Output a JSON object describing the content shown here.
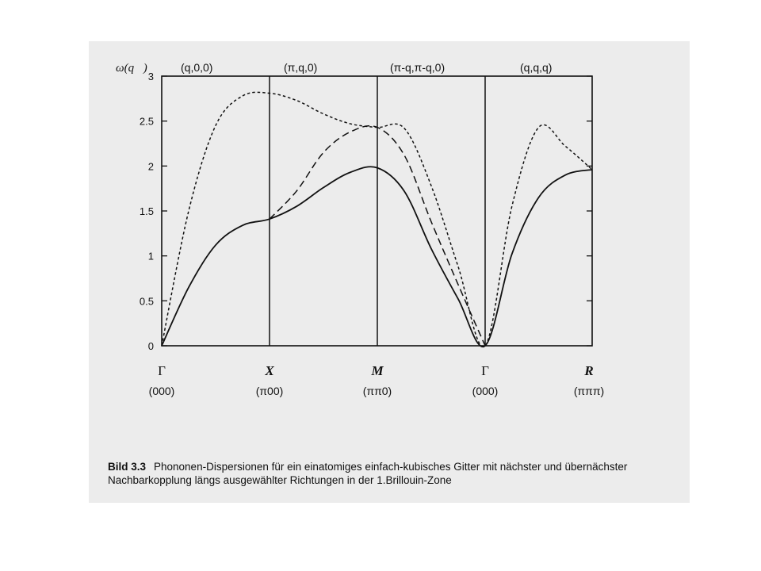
{
  "chart_data": {
    "type": "line",
    "ylabel": "ω(q⃗)",
    "ylim": [
      0,
      3
    ],
    "yticks": [
      "0",
      "0.5",
      "1",
      "1.5",
      "2",
      "2.5",
      "3"
    ],
    "grid": false,
    "segments": [
      {
        "label": "(q,0,0)"
      },
      {
        "label": "(π,q,0)"
      },
      {
        "label": "(π-q,π-q,0)"
      },
      {
        "label": "(q,q,q)"
      }
    ],
    "points": [
      {
        "symbol": "Γ",
        "coord": "(000)",
        "pos": 0.0
      },
      {
        "symbol": "X",
        "coord": "(π00)",
        "pos": 1.0
      },
      {
        "symbol": "M",
        "coord": "(ππ0)",
        "pos": 2.0
      },
      {
        "symbol": "Γ",
        "coord": "(000)",
        "pos": 3.0
      },
      {
        "symbol": "R",
        "coord": "(πππ)",
        "pos": 4.0
      }
    ],
    "series": [
      {
        "style": "solid",
        "x": [
          0,
          0.25,
          0.5,
          0.75,
          1.0,
          1.25,
          1.5,
          1.75,
          2.0,
          2.25,
          2.5,
          2.75,
          3.0,
          3.25,
          3.5,
          3.75,
          4.0
        ],
        "y": [
          0,
          0.65,
          1.12,
          1.34,
          1.41,
          1.55,
          1.76,
          1.93,
          1.98,
          1.72,
          1.08,
          0.52,
          0,
          1.02,
          1.65,
          1.9,
          1.96
        ]
      },
      {
        "style": "dashed",
        "x": [
          1.0,
          1.25,
          1.5,
          1.75,
          2.0,
          2.25,
          2.5,
          2.75,
          3.0
        ],
        "y": [
          1.41,
          1.72,
          2.15,
          2.38,
          2.43,
          2.12,
          1.38,
          0.68,
          0
        ]
      },
      {
        "style": "dotted",
        "x": [
          0,
          0.25,
          0.5,
          0.75,
          1.0,
          1.25,
          1.5,
          1.75,
          2.0,
          2.25,
          2.5,
          2.75,
          3.0,
          3.25,
          3.5,
          3.75,
          4.0
        ],
        "y": [
          0,
          1.5,
          2.45,
          2.78,
          2.81,
          2.73,
          2.58,
          2.47,
          2.43,
          2.42,
          1.78,
          0.88,
          0,
          1.55,
          2.43,
          2.22,
          1.96
        ]
      }
    ]
  },
  "caption": {
    "label": "Bild 3.3",
    "text": "Phononen-Dispersionen für ein einatomiges einfach-kubisches Gitter mit nächster und übernächster Nachbarkopplung längs ausgewählter Richtungen in der 1.Brillouin-Zone"
  }
}
